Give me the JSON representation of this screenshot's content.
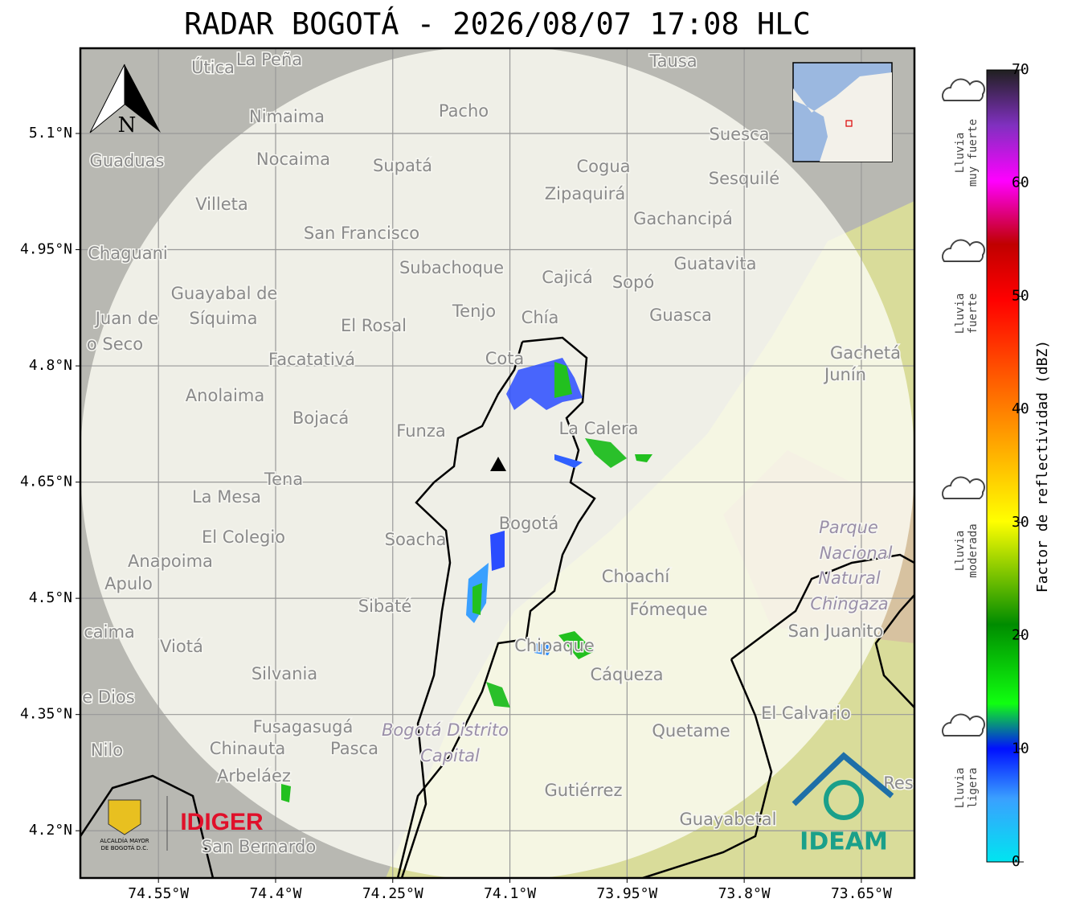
{
  "title": "RADAR BOGOTÁ - 2026/08/07 17:08 HLC",
  "map": {
    "xlim": [
      -74.65,
      -73.582
    ],
    "ylim": [
      4.139,
      5.21
    ],
    "xticks": [
      {
        "value": -74.55,
        "label": "74.55°W"
      },
      {
        "value": -74.4,
        "label": "74.4°W"
      },
      {
        "value": -74.25,
        "label": "74.25°W"
      },
      {
        "value": -74.1,
        "label": "74.1°W"
      },
      {
        "value": -73.95,
        "label": "73.95°W"
      },
      {
        "value": -73.8,
        "label": "73.8°W"
      },
      {
        "value": -73.65,
        "label": "73.65°W"
      }
    ],
    "yticks": [
      {
        "value": 5.1,
        "label": "5.1°N"
      },
      {
        "value": 4.95,
        "label": "4.95°N"
      },
      {
        "value": 4.8,
        "label": "4.8°N"
      },
      {
        "value": 4.65,
        "label": "4.65°N"
      },
      {
        "value": 4.5,
        "label": "4.5°N"
      },
      {
        "value": 4.35,
        "label": "4.35°N"
      },
      {
        "value": 4.2,
        "label": "4.2°N"
      }
    ],
    "north": "N",
    "places": [
      "Útica",
      "La Peña",
      "Tausa",
      "Pacho",
      "Nimaima",
      "Guaduas",
      "Nocaima",
      "Supatá",
      "Cogua",
      "Suesca",
      "Sesquilé",
      "Zipaquirá",
      "Villeta",
      "Gachancipá",
      "San Francisco",
      "Chaguani",
      "Guatavita",
      "Subachoque",
      "Cajicá",
      "Sopó",
      "Guayabal de",
      "Síquima",
      "Juan de",
      "o Seco",
      "Tenjo",
      "Chía",
      "El Rosal",
      "Guasca",
      "Facatativá",
      "Cota",
      "Gachetá",
      "Junín",
      "Anolaima",
      "Bojacá",
      "Funza",
      "La Calera",
      "Tena",
      "La Mesa",
      "El Colegio",
      "Soacha",
      "Bogotá",
      "Parque",
      "Nacional",
      "Natural",
      "Chingaza",
      "San Juanito",
      "Anapoima",
      "Apulo",
      "Choachí",
      "Fómeque",
      "Sibaté",
      "caima",
      "Viotá",
      "Silvania",
      "Chipaque",
      "Cáqueza",
      "e Dios",
      "El Calvario",
      "Fusagasugá",
      "Bogotá Distrito",
      "Capital",
      "Quetame",
      "Nilo",
      "Chinauta",
      "Pasca",
      "Arbeláez",
      "Gutiérrez",
      "Guayabetal",
      "San Bernardo",
      "Res"
    ],
    "logos": {
      "alcaldia": "ALCALDÍA MAYOR",
      "alcaldia2": "DE BOGOTÁ D.C.",
      "idiger": "IDIGER",
      "ideam": "IDEAM"
    }
  },
  "colorbar": {
    "label": "Factor de reflectividad (dBZ)",
    "lim": [
      0,
      70
    ],
    "ticks": [
      0,
      10,
      20,
      30,
      40,
      50,
      60,
      70
    ],
    "rain": [
      [
        "Lluvia",
        "muy fuerte"
      ],
      [
        "Lluvia",
        "fuerte"
      ],
      [
        "Lluvia",
        "moderada"
      ],
      [
        "Lluvia",
        "ligera"
      ]
    ]
  }
}
